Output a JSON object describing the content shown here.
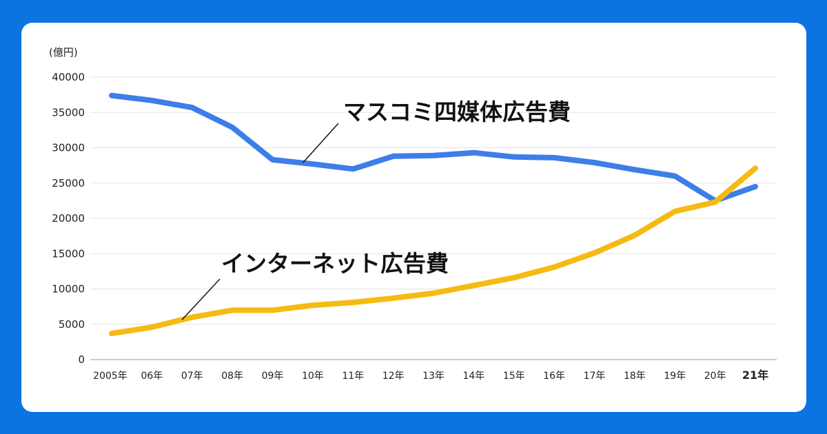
{
  "chart_data": {
    "type": "line",
    "unit_label": "(億円)",
    "y_ticks": [
      "0",
      "5000",
      "10000",
      "15000",
      "20000",
      "25000",
      "30000",
      "35000",
      "40000"
    ],
    "ylim": [
      0,
      40000
    ],
    "categories": [
      "2005年",
      "06年",
      "07年",
      "08年",
      "09年",
      "10年",
      "11年",
      "12年",
      "13年",
      "14年",
      "15年",
      "16年",
      "17年",
      "18年",
      "19年",
      "20年",
      "21年"
    ],
    "highlight_last_category": true,
    "grid": true,
    "series": [
      {
        "name": "マスコミ四媒体広告費",
        "color": "#3d7ee8",
        "values": [
          37400,
          36700,
          35700,
          32900,
          28300,
          27700,
          27000,
          28800,
          28900,
          29300,
          28700,
          28600,
          27900,
          26900,
          26000,
          22500,
          24500
        ]
      },
      {
        "name": "インターネット広告費",
        "color": "#f5bb13",
        "values": [
          3700,
          4600,
          6000,
          7000,
          7000,
          7700,
          8100,
          8700,
          9400,
          10500,
          11600,
          13100,
          15100,
          17600,
          21000,
          22300,
          27100
        ]
      }
    ]
  }
}
